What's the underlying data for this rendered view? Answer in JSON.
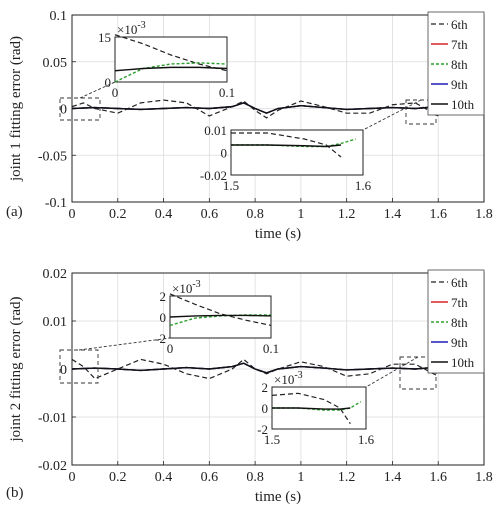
{
  "legend_labels": [
    "6th",
    "7th",
    "8th",
    "9th",
    "10th"
  ],
  "colors": {
    "6th": "#222222",
    "7th": "#d62728",
    "8th": "#2ca02c",
    "9th": "#1f1fb4",
    "10th": "#111111"
  },
  "chart_data": [
    {
      "type": "line",
      "panel_label": "(a)",
      "ylabel": "joint 1 fitting error (rad)",
      "xlabel": "time (s)",
      "xlim": [
        0,
        1.8
      ],
      "ylim": [
        -0.1,
        0.1
      ],
      "xticks": [
        "0",
        "0.2",
        "0.4",
        "0.6",
        "0.8",
        "1",
        "1.2",
        "1.4",
        "1.6",
        "1.8"
      ],
      "yticks": [
        "0.1",
        "0.05",
        "0",
        "-0.05",
        "-0.1"
      ],
      "grid": true,
      "legend": "top-right",
      "series": [
        {
          "name": "6th",
          "x": [
            0,
            0.05,
            0.1,
            0.2,
            0.3,
            0.4,
            0.5,
            0.6,
            0.7,
            0.75,
            0.8,
            0.85,
            0.9,
            1.0,
            1.1,
            1.2,
            1.3,
            1.4,
            1.5,
            1.6
          ],
          "y": [
            0.002,
            0.006,
            0.0,
            -0.005,
            0.006,
            0.009,
            0.006,
            -0.008,
            0.002,
            0.008,
            -0.002,
            -0.01,
            -0.002,
            0.008,
            0.002,
            -0.005,
            -0.005,
            0.004,
            0.006,
            -0.008
          ]
        },
        {
          "name": "7th",
          "x": [
            0,
            0.1,
            0.2,
            0.3,
            0.4,
            0.5,
            0.6,
            0.7,
            0.75,
            0.8,
            0.85,
            0.9,
            1.0,
            1.1,
            1.2,
            1.3,
            1.4,
            1.5,
            1.6
          ],
          "y": [
            0,
            0.001,
            0,
            -0.001,
            0,
            0.001,
            0,
            0.002,
            0.006,
            0,
            -0.005,
            0,
            0.003,
            0.001,
            -0.001,
            0,
            0.001,
            0,
            0.002
          ]
        },
        {
          "name": "8th",
          "x": [
            0,
            0.1,
            0.2,
            0.3,
            0.4,
            0.5,
            0.6,
            0.7,
            0.75,
            0.8,
            0.85,
            0.9,
            1.0,
            1.1,
            1.2,
            1.3,
            1.4,
            1.5,
            1.6
          ],
          "y": [
            0,
            0.001,
            0,
            -0.001,
            0,
            0.001,
            0,
            0.002,
            0.006,
            0,
            -0.005,
            0,
            0.003,
            0.001,
            -0.001,
            0,
            0.001,
            0,
            0.002
          ]
        },
        {
          "name": "9th",
          "x": [
            0,
            0.1,
            0.2,
            0.3,
            0.4,
            0.5,
            0.6,
            0.7,
            0.75,
            0.8,
            0.85,
            0.9,
            1.0,
            1.1,
            1.2,
            1.3,
            1.4,
            1.5,
            1.6
          ],
          "y": [
            0,
            0.001,
            0,
            -0.001,
            0,
            0.001,
            0,
            0.002,
            0.006,
            0,
            -0.005,
            0,
            0.003,
            0.001,
            -0.001,
            0,
            0.001,
            0,
            0.002
          ]
        },
        {
          "name": "10th",
          "x": [
            0,
            0.1,
            0.2,
            0.3,
            0.4,
            0.5,
            0.6,
            0.7,
            0.75,
            0.8,
            0.85,
            0.9,
            1.0,
            1.1,
            1.2,
            1.3,
            1.4,
            1.5,
            1.6
          ],
          "y": [
            0,
            0.001,
            0,
            -0.001,
            0,
            0.001,
            0,
            0.002,
            0.006,
            0,
            -0.005,
            0,
            0.003,
            0.001,
            -0.001,
            0,
            0.001,
            0,
            0.002
          ]
        }
      ],
      "inset1": {
        "xlim": [
          0,
          0.1
        ],
        "ylim": [
          -5,
          15
        ],
        "scale": "×10^-3",
        "xticks": [
          "0",
          "0.1"
        ],
        "yticks": [
          "15",
          "0"
        ],
        "series": [
          {
            "name": "6th",
            "x": [
              0,
              0.025,
              0.05,
              0.075,
              0.1
            ],
            "y": [
              16,
              12,
              7,
              3,
              0
            ]
          },
          {
            "name": "8th",
            "x": [
              0,
              0.025,
              0.05,
              0.075,
              0.1
            ],
            "y": [
              -5,
              1,
              3,
              3.5,
              3
            ]
          },
          {
            "name": "10th",
            "x": [
              0,
              0.025,
              0.05,
              0.075,
              0.1
            ],
            "y": [
              0,
              1,
              1.5,
              1.5,
              1
            ]
          }
        ]
      },
      "inset2": {
        "xlim": [
          1.45,
          1.63
        ],
        "ylim": [
          -0.02,
          0.01
        ],
        "xticks": [
          "1.5",
          "1.6"
        ],
        "yticks": [
          "0.01",
          "0",
          "-0.02"
        ],
        "series": [
          {
            "name": "6th",
            "x": [
              1.45,
              1.5,
              1.55,
              1.58,
              1.6
            ],
            "y": [
              0.008,
              0.008,
              0.004,
              0.0,
              -0.008
            ]
          },
          {
            "name": "8th",
            "x": [
              1.45,
              1.5,
              1.55,
              1.58,
              1.6,
              1.62
            ],
            "y": [
              0,
              0,
              -0.001,
              -0.001,
              0.001,
              0.004
            ]
          },
          {
            "name": "10th",
            "x": [
              1.45,
              1.5,
              1.55,
              1.58,
              1.6
            ],
            "y": [
              0,
              0,
              -0.0005,
              -0.001,
              0
            ]
          }
        ]
      }
    },
    {
      "type": "line",
      "panel_label": "(b)",
      "ylabel": "joint 2 fitting error (rad)",
      "xlabel": "time (s)",
      "xlim": [
        0,
        1.8
      ],
      "ylim": [
        -0.02,
        0.02
      ],
      "xticks": [
        "0",
        "0.2",
        "0.4",
        "0.6",
        "0.8",
        "1",
        "1.2",
        "1.4",
        "1.6",
        "1.8"
      ],
      "yticks": [
        "0.02",
        "0.01",
        "0",
        "-0.01",
        "-0.02"
      ],
      "grid": true,
      "legend": "top-right",
      "series": [
        {
          "name": "6th",
          "x": [
            0,
            0.05,
            0.1,
            0.2,
            0.3,
            0.4,
            0.5,
            0.6,
            0.7,
            0.75,
            0.8,
            0.85,
            0.9,
            1.0,
            1.1,
            1.2,
            1.3,
            1.4,
            1.5,
            1.6
          ],
          "y": [
            0.002,
            0.0005,
            -0.002,
            0,
            0.002,
            0.001,
            -0.001,
            -0.002,
            0.0,
            0.002,
            0.0,
            -0.001,
            0.0,
            0.0015,
            0.0005,
            -0.0015,
            -0.001,
            0.001,
            0.001,
            -0.0015
          ]
        },
        {
          "name": "7th",
          "x": [
            0,
            0.1,
            0.2,
            0.3,
            0.4,
            0.5,
            0.6,
            0.7,
            0.75,
            0.8,
            0.85,
            0.9,
            1.0,
            1.1,
            1.2,
            1.3,
            1.4,
            1.5,
            1.6
          ],
          "y": [
            0,
            0.0002,
            0,
            -0.0003,
            0,
            0.0003,
            0,
            0.0005,
            0.0012,
            0,
            -0.0008,
            0,
            0.0005,
            0.0002,
            -0.0002,
            0,
            0.0002,
            0,
            0.0004
          ]
        },
        {
          "name": "8th",
          "x": [
            0,
            0.1,
            0.2,
            0.3,
            0.4,
            0.5,
            0.6,
            0.7,
            0.75,
            0.8,
            0.85,
            0.9,
            1.0,
            1.1,
            1.2,
            1.3,
            1.4,
            1.5,
            1.6
          ],
          "y": [
            0,
            0.0002,
            0,
            -0.0003,
            0,
            0.0003,
            0,
            0.0005,
            0.0012,
            0,
            -0.0008,
            0,
            0.0005,
            0.0002,
            -0.0002,
            0,
            0.0002,
            0,
            0.0004
          ]
        },
        {
          "name": "9th",
          "x": [
            0,
            0.1,
            0.2,
            0.3,
            0.4,
            0.5,
            0.6,
            0.7,
            0.75,
            0.8,
            0.85,
            0.9,
            1.0,
            1.1,
            1.2,
            1.3,
            1.4,
            1.5,
            1.6
          ],
          "y": [
            0,
            0.0002,
            0,
            -0.0003,
            0,
            0.0003,
            0,
            0.0005,
            0.0012,
            0,
            -0.0008,
            0,
            0.0005,
            0.0002,
            -0.0002,
            0,
            0.0002,
            0,
            0.0004
          ]
        },
        {
          "name": "10th",
          "x": [
            0,
            0.1,
            0.2,
            0.3,
            0.4,
            0.5,
            0.6,
            0.7,
            0.75,
            0.8,
            0.85,
            0.9,
            1.0,
            1.1,
            1.2,
            1.3,
            1.4,
            1.5,
            1.6
          ],
          "y": [
            0,
            0.0002,
            0,
            -0.0003,
            0,
            0.0003,
            0,
            0.0005,
            0.0012,
            0,
            -0.0008,
            0,
            0.0005,
            0.0002,
            -0.0002,
            0,
            0.0002,
            0,
            0.0004
          ]
        }
      ],
      "inset1": {
        "xlim": [
          0,
          0.1
        ],
        "ylim": [
          -2,
          2
        ],
        "scale": "×10^-3",
        "xticks": [
          "0",
          "0.1"
        ],
        "yticks": [
          "2",
          "0",
          "-2"
        ],
        "series": [
          {
            "name": "6th",
            "x": [
              0,
              0.025,
              0.05,
              0.075,
              0.1
            ],
            "y": [
              2.2,
              1.2,
              0.3,
              -0.3,
              -0.8
            ]
          },
          {
            "name": "8th",
            "x": [
              0,
              0.025,
              0.05,
              0.075,
              0.1
            ],
            "y": [
              -0.8,
              -0.1,
              0.1,
              0.2,
              0.2
            ]
          },
          {
            "name": "10th",
            "x": [
              0,
              0.025,
              0.05,
              0.075,
              0.1
            ],
            "y": [
              0,
              0.1,
              0.15,
              0.15,
              0.1
            ]
          }
        ]
      },
      "inset2": {
        "xlim": [
          1.45,
          1.63
        ],
        "ylim": [
          -2,
          2
        ],
        "scale": "×10^-3",
        "xticks": [
          "1.5",
          "1.6"
        ],
        "yticks": [
          "2",
          "0",
          "-2"
        ],
        "series": [
          {
            "name": "6th",
            "x": [
              1.45,
              1.5,
              1.55,
              1.58,
              1.6
            ],
            "y": [
              1.2,
              1.4,
              0.8,
              0,
              -1.5
            ]
          },
          {
            "name": "8th",
            "x": [
              1.45,
              1.5,
              1.55,
              1.58,
              1.6,
              1.62
            ],
            "y": [
              0,
              0,
              -0.2,
              -0.2,
              0,
              0.6
            ]
          },
          {
            "name": "10th",
            "x": [
              1.45,
              1.5,
              1.55,
              1.58,
              1.6
            ],
            "y": [
              0,
              0,
              -0.1,
              -0.1,
              0
            ]
          }
        ]
      }
    }
  ]
}
